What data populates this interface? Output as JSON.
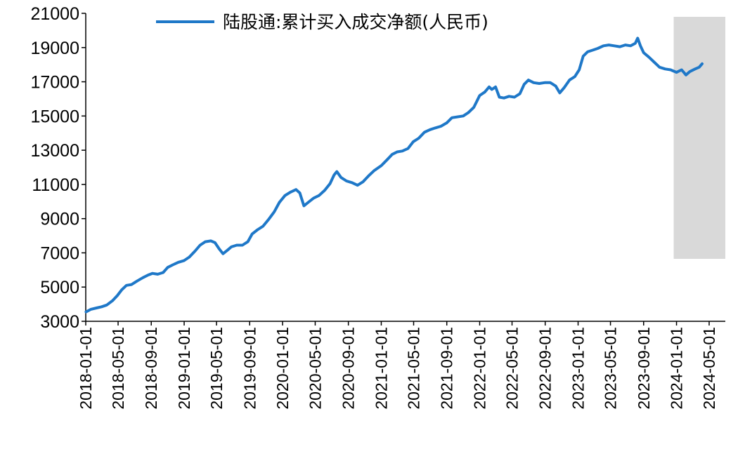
{
  "chart_data": {
    "type": "line",
    "title": "",
    "xlabel": "",
    "ylabel": "",
    "ylim": [
      3000,
      21000
    ],
    "y_ticks": [
      3000,
      5000,
      7000,
      9000,
      11000,
      13000,
      15000,
      17000,
      19000,
      21000
    ],
    "y_tick_labels": [
      "3000",
      "5000",
      "7000",
      "9000",
      "11000",
      "13000",
      "15000",
      "17000",
      "19000",
      "21000"
    ],
    "x_range": [
      "2018-01-01",
      "2024-06-30"
    ],
    "x_tick_labels": [
      "2018-01-01",
      "2018-05-01",
      "2018-09-01",
      "2019-01-01",
      "2019-05-01",
      "2019-09-01",
      "2020-01-01",
      "2020-05-01",
      "2020-09-01",
      "2021-01-01",
      "2021-05-01",
      "2021-09-01",
      "2022-01-01",
      "2022-05-01",
      "2022-09-01",
      "2023-01-01",
      "2023-05-01",
      "2023-09-01",
      "2024-01-01",
      "2024-05-01"
    ],
    "grid": false,
    "legend_position": "top",
    "highlight_band": {
      "start": "2024-01-01",
      "end": "2024-06-30",
      "color": "#d9d9d9"
    },
    "series": [
      {
        "name": "陆股通:累计买入成交净额(人民币)",
        "color": "#1f78c8",
        "points": [
          [
            "2018-01-02",
            3550
          ],
          [
            "2018-01-20",
            3700
          ],
          [
            "2018-02-10",
            3780
          ],
          [
            "2018-03-01",
            3850
          ],
          [
            "2018-03-20",
            3950
          ],
          [
            "2018-04-10",
            4200
          ],
          [
            "2018-04-28",
            4500
          ],
          [
            "2018-05-15",
            4850
          ],
          [
            "2018-06-01",
            5100
          ],
          [
            "2018-06-20",
            5150
          ],
          [
            "2018-07-10",
            5350
          ],
          [
            "2018-08-01",
            5550
          ],
          [
            "2018-08-20",
            5700
          ],
          [
            "2018-09-05",
            5800
          ],
          [
            "2018-09-25",
            5750
          ],
          [
            "2018-10-15",
            5850
          ],
          [
            "2018-11-01",
            6150
          ],
          [
            "2018-11-20",
            6300
          ],
          [
            "2018-12-10",
            6450
          ],
          [
            "2019-01-01",
            6550
          ],
          [
            "2019-01-20",
            6750
          ],
          [
            "2019-02-10",
            7100
          ],
          [
            "2019-03-01",
            7450
          ],
          [
            "2019-03-20",
            7650
          ],
          [
            "2019-04-10",
            7700
          ],
          [
            "2019-04-25",
            7600
          ],
          [
            "2019-05-10",
            7250
          ],
          [
            "2019-05-25",
            6950
          ],
          [
            "2019-06-10",
            7150
          ],
          [
            "2019-06-25",
            7350
          ],
          [
            "2019-07-15",
            7450
          ],
          [
            "2019-08-05",
            7450
          ],
          [
            "2019-08-25",
            7650
          ],
          [
            "2019-09-10",
            8100
          ],
          [
            "2019-09-30",
            8350
          ],
          [
            "2019-10-20",
            8550
          ],
          [
            "2019-11-10",
            8950
          ],
          [
            "2019-12-01",
            9400
          ],
          [
            "2019-12-20",
            9950
          ],
          [
            "2020-01-10",
            10350
          ],
          [
            "2020-01-30",
            10550
          ],
          [
            "2020-02-20",
            10700
          ],
          [
            "2020-03-05",
            10500
          ],
          [
            "2020-03-20",
            9750
          ],
          [
            "2020-04-05",
            9950
          ],
          [
            "2020-04-25",
            10200
          ],
          [
            "2020-05-15",
            10350
          ],
          [
            "2020-06-05",
            10650
          ],
          [
            "2020-06-25",
            11050
          ],
          [
            "2020-07-10",
            11550
          ],
          [
            "2020-07-20",
            11750
          ],
          [
            "2020-08-05",
            11400
          ],
          [
            "2020-08-25",
            11200
          ],
          [
            "2020-09-15",
            11100
          ],
          [
            "2020-10-05",
            10950
          ],
          [
            "2020-10-25",
            11150
          ],
          [
            "2020-11-15",
            11500
          ],
          [
            "2020-12-05",
            11800
          ],
          [
            "2021-01-01",
            12100
          ],
          [
            "2021-01-20",
            12400
          ],
          [
            "2021-02-10",
            12750
          ],
          [
            "2021-03-01",
            12900
          ],
          [
            "2021-03-20",
            12950
          ],
          [
            "2021-04-10",
            13100
          ],
          [
            "2021-04-30",
            13500
          ],
          [
            "2021-05-20",
            13700
          ],
          [
            "2021-06-10",
            14050
          ],
          [
            "2021-07-01",
            14200
          ],
          [
            "2021-07-20",
            14300
          ],
          [
            "2021-08-10",
            14400
          ],
          [
            "2021-09-01",
            14600
          ],
          [
            "2021-09-20",
            14900
          ],
          [
            "2021-10-10",
            14950
          ],
          [
            "2021-11-01",
            15000
          ],
          [
            "2021-11-20",
            15200
          ],
          [
            "2021-12-10",
            15500
          ],
          [
            "2022-01-01",
            16200
          ],
          [
            "2022-01-20",
            16400
          ],
          [
            "2022-02-05",
            16700
          ],
          [
            "2022-02-15",
            16550
          ],
          [
            "2022-03-01",
            16700
          ],
          [
            "2022-03-15",
            16100
          ],
          [
            "2022-04-01",
            16050
          ],
          [
            "2022-04-20",
            16150
          ],
          [
            "2022-05-10",
            16100
          ],
          [
            "2022-05-30",
            16300
          ],
          [
            "2022-06-15",
            16850
          ],
          [
            "2022-07-01",
            17100
          ],
          [
            "2022-07-20",
            16950
          ],
          [
            "2022-08-10",
            16900
          ],
          [
            "2022-08-30",
            16950
          ],
          [
            "2022-09-20",
            16950
          ],
          [
            "2022-10-10",
            16750
          ],
          [
            "2022-10-25",
            16350
          ],
          [
            "2022-11-10",
            16650
          ],
          [
            "2022-11-30",
            17100
          ],
          [
            "2022-12-20",
            17300
          ],
          [
            "2023-01-05",
            17700
          ],
          [
            "2023-01-20",
            18500
          ],
          [
            "2023-02-05",
            18750
          ],
          [
            "2023-02-25",
            18850
          ],
          [
            "2023-03-15",
            18950
          ],
          [
            "2023-04-05",
            19100
          ],
          [
            "2023-04-25",
            19150
          ],
          [
            "2023-05-15",
            19100
          ],
          [
            "2023-06-05",
            19050
          ],
          [
            "2023-06-25",
            19150
          ],
          [
            "2023-07-15",
            19100
          ],
          [
            "2023-08-01",
            19250
          ],
          [
            "2023-08-10",
            19550
          ],
          [
            "2023-08-20",
            19100
          ],
          [
            "2023-09-01",
            18700
          ],
          [
            "2023-09-20",
            18450
          ],
          [
            "2023-10-10",
            18150
          ],
          [
            "2023-10-30",
            17850
          ],
          [
            "2023-11-20",
            17750
          ],
          [
            "2023-12-10",
            17700
          ],
          [
            "2024-01-01",
            17550
          ],
          [
            "2024-01-20",
            17700
          ],
          [
            "2024-02-05",
            17400
          ],
          [
            "2024-02-20",
            17600
          ],
          [
            "2024-03-10",
            17750
          ],
          [
            "2024-03-25",
            17850
          ],
          [
            "2024-04-05",
            18050
          ]
        ]
      }
    ]
  }
}
